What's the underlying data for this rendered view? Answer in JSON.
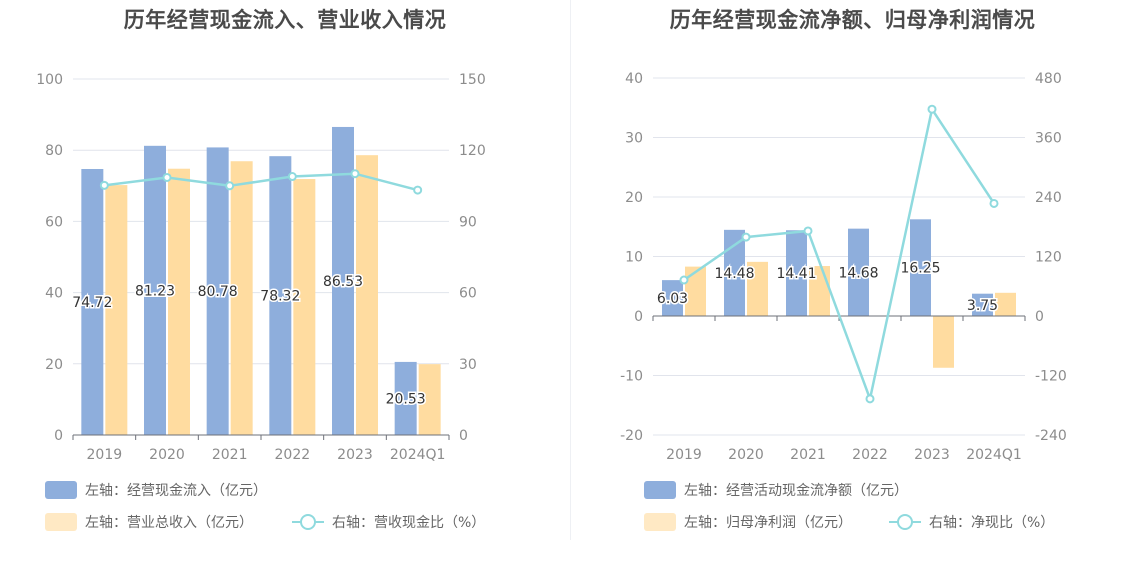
{
  "colors": {
    "bar1": "#8eaedc",
    "bar2": "#ffdca0",
    "line": "#8fdade",
    "grid": "#e1e4ec",
    "axis": "#6e7079"
  },
  "chart_data": [
    {
      "type": "bar",
      "title": "历年经营现金流入、营业收入情况",
      "categories": [
        "2019",
        "2020",
        "2021",
        "2022",
        "2023",
        "2024Q1"
      ],
      "left_axis": {
        "min": 0,
        "max": 100,
        "ticks": [
          "0",
          "20",
          "40",
          "60",
          "80",
          "100"
        ]
      },
      "right_axis": {
        "min": 0,
        "max": 150,
        "ticks": [
          "0",
          "30",
          "60",
          "90",
          "120",
          "150"
        ]
      },
      "series": [
        {
          "name": "左轴：经营现金流入（亿元）",
          "type": "bar",
          "axis": "left",
          "values": [
            74.72,
            81.23,
            80.78,
            78.32,
            86.53,
            20.53
          ],
          "labels": [
            "74.72",
            "81.23",
            "80.78",
            "78.32",
            "86.53",
            "20.53"
          ]
        },
        {
          "name": "左轴：营业总收入（亿元）",
          "type": "bar",
          "axis": "left",
          "values": [
            70.2,
            74.8,
            76.9,
            71.9,
            78.6,
            19.9
          ]
        },
        {
          "name": "右轴：营收现金比（%）",
          "type": "line",
          "axis": "right",
          "values": [
            105.2,
            108.5,
            105.0,
            108.9,
            110.1,
            103.2
          ]
        }
      ]
    },
    {
      "type": "bar",
      "title": "历年经营现金流净额、归母净利润情况",
      "categories": [
        "2019",
        "2020",
        "2021",
        "2022",
        "2023",
        "2024Q1"
      ],
      "left_axis": {
        "min": -20,
        "max": 40,
        "ticks": [
          "-20",
          "-10",
          "0",
          "10",
          "20",
          "30",
          "40"
        ]
      },
      "right_axis": {
        "min": -240,
        "max": 480,
        "ticks": [
          "-240",
          "-120",
          "0",
          "120",
          "240",
          "360",
          "480"
        ]
      },
      "series": [
        {
          "name": "左轴：经营活动现金流净额（亿元）",
          "type": "bar",
          "axis": "left",
          "values": [
            6.03,
            14.48,
            14.41,
            14.68,
            16.25,
            3.75
          ],
          "labels": [
            "6.03",
            "14.48",
            "14.41",
            "14.68",
            "16.25",
            "3.75"
          ]
        },
        {
          "name": "左轴：归母净利润（亿元）",
          "type": "bar",
          "axis": "left",
          "values": [
            8.3,
            9.1,
            8.4,
            0,
            -8.7,
            3.9
          ]
        },
        {
          "name": "右轴：净现比（%）",
          "type": "line",
          "axis": "right",
          "values": [
            72.6,
            159.1,
            171.5,
            -167.1,
            417.0,
            227.0
          ]
        }
      ]
    }
  ],
  "fix_note": ""
}
